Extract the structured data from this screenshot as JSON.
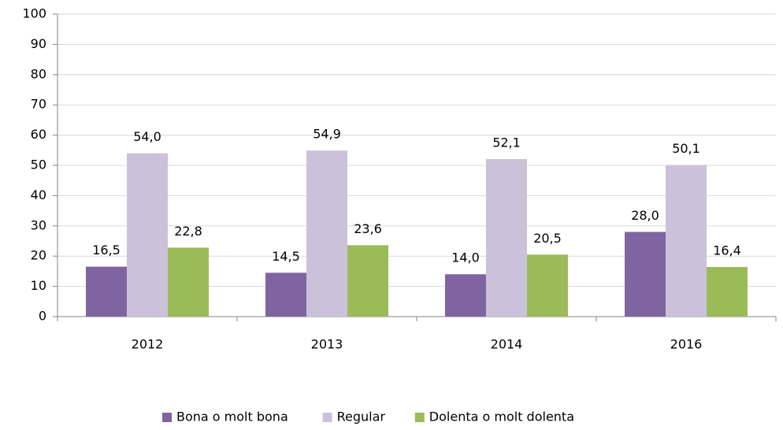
{
  "chart_data": {
    "type": "bar",
    "categories": [
      "2012",
      "2013",
      "2014",
      "2016"
    ],
    "series": [
      {
        "name": "Bona o molt bona",
        "color": "#8064a2",
        "values": [
          16.5,
          14.5,
          14.0,
          28.0
        ],
        "value_labels": [
          "16,5",
          "14,5",
          "14,0",
          "28,0"
        ]
      },
      {
        "name": "Regular",
        "color": "#ccc1da",
        "values": [
          54.0,
          54.9,
          52.1,
          50.1
        ],
        "value_labels": [
          "54,0",
          "54,9",
          "52,1",
          "50,1"
        ]
      },
      {
        "name": "Dolenta o molt dolenta",
        "color": "#9bbb59",
        "values": [
          22.8,
          23.6,
          20.5,
          16.4
        ],
        "value_labels": [
          "22,8",
          "23,6",
          "20,5",
          "16,4"
        ]
      }
    ],
    "ylim": [
      0,
      100
    ],
    "yticks": [
      0,
      10,
      20,
      30,
      40,
      50,
      60,
      70,
      80,
      90,
      100
    ],
    "grid": true,
    "legend": "bottom"
  }
}
